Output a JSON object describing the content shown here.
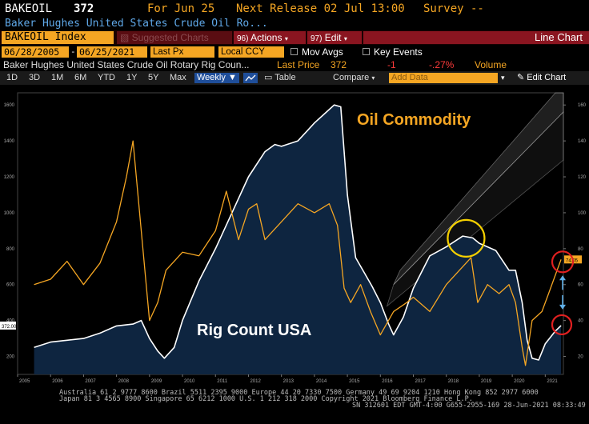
{
  "header": {
    "ticker": "BAKEOIL",
    "value": "372",
    "for_date": "For Jun 25",
    "next_release": "Next Release 02 Jul 13:00",
    "survey": "Survey --",
    "description": "Baker Hughes United States Crude Oil Ro..."
  },
  "toolbar": {
    "security": "BAKEOIL Index",
    "suggested_charts": "Suggested Charts",
    "actions": "Actions",
    "actions_key": "96)",
    "edit": "Edit",
    "edit_key": "97)",
    "chart_type": "Line Chart"
  },
  "settings": {
    "start_date": "06/28/2005",
    "end_date": "06/25/2021",
    "field": "Last Px",
    "currency": "Local CCY",
    "mov_avgs": "Mov Avgs",
    "key_events": "Key Events"
  },
  "legend": {
    "series_name": "Baker Hughes United States Crude Oil Rotary Rig Coun...",
    "last_price_label": "Last Price",
    "last_price": "372",
    "change": "-1",
    "change_pct": "-.27%",
    "volume_label": "Volume"
  },
  "period_bar": {
    "periods": [
      "1D",
      "3D",
      "1M",
      "6M",
      "YTD",
      "1Y",
      "5Y",
      "Max"
    ],
    "frequency": "Weekly",
    "table": "Table",
    "compare": "Compare",
    "add_data": "Add Data",
    "edit_chart": "Edit Chart"
  },
  "chart_data": {
    "type": "line",
    "annotations": [
      "Oil Commodity",
      "Rig Count USA"
    ],
    "x_ticks": [
      "2005",
      "2006",
      "2007",
      "2008",
      "2009",
      "2010",
      "2011",
      "2012",
      "2013",
      "2014",
      "2015",
      "2016",
      "2017",
      "2018",
      "2019",
      "2020",
      "2021"
    ],
    "left_axis": {
      "ticks": [
        200,
        400,
        600,
        800,
        1000,
        1200,
        1400,
        1600
      ],
      "range": [
        100,
        1650
      ]
    },
    "right_axis": {
      "ticks": [
        20,
        40,
        60,
        80,
        100,
        120,
        140,
        160
      ],
      "range": [
        10,
        165
      ]
    },
    "last_labels": {
      "left": "372.00",
      "right": "74.05"
    },
    "series": [
      {
        "name": "Rig Count USA",
        "color": "#ffffff",
        "fill": "#0e2540",
        "x": [
          2005.5,
          2006.0,
          2006.5,
          2007.0,
          2007.5,
          2008.0,
          2008.5,
          2008.75,
          2009.0,
          2009.25,
          2009.45,
          2009.75,
          2010.0,
          2010.5,
          2011.0,
          2011.5,
          2012.0,
          2012.5,
          2012.8,
          2013.0,
          2013.5,
          2014.0,
          2014.3,
          2014.6,
          2014.8,
          2015.0,
          2015.25,
          2015.5,
          2015.75,
          2016.0,
          2016.25,
          2016.4,
          2016.7,
          2017.0,
          2017.5,
          2018.0,
          2018.5,
          2018.8,
          2019.0,
          2019.5,
          2019.9,
          2020.1,
          2020.3,
          2020.45,
          2020.6,
          2020.8,
          2021.0,
          2021.3,
          2021.48
        ],
        "values": [
          250,
          280,
          290,
          300,
          330,
          370,
          380,
          400,
          300,
          230,
          190,
          250,
          400,
          620,
          800,
          1000,
          1200,
          1340,
          1380,
          1370,
          1400,
          1500,
          1550,
          1600,
          1590,
          1100,
          750,
          670,
          590,
          500,
          380,
          320,
          420,
          580,
          760,
          810,
          870,
          860,
          830,
          790,
          680,
          680,
          500,
          290,
          190,
          180,
          270,
          340,
          372
        ]
      },
      {
        "name": "Oil Commodity",
        "color": "#f5a623",
        "x": [
          2005.5,
          2006.0,
          2006.5,
          2007.0,
          2007.5,
          2008.0,
          2008.3,
          2008.5,
          2008.75,
          2009.0,
          2009.25,
          2009.5,
          2010.0,
          2010.5,
          2011.0,
          2011.33,
          2011.7,
          2012.0,
          2012.25,
          2012.5,
          2013.0,
          2013.5,
          2014.0,
          2014.45,
          2014.7,
          2014.9,
          2015.1,
          2015.4,
          2015.7,
          2016.0,
          2016.4,
          2016.8,
          2017.0,
          2017.5,
          2018.0,
          2018.75,
          2018.95,
          2019.25,
          2019.6,
          2019.9,
          2020.1,
          2020.3,
          2020.4,
          2020.6,
          2020.9,
          2021.1,
          2021.3,
          2021.48
        ],
        "values": [
          60,
          63,
          73,
          60,
          72,
          95,
          120,
          140,
          90,
          40,
          50,
          68,
          78,
          76,
          90,
          112,
          85,
          102,
          105,
          85,
          95,
          105,
          100,
          105,
          93,
          58,
          50,
          60,
          45,
          32,
          45,
          50,
          53,
          45,
          60,
          75,
          50,
          60,
          55,
          60,
          50,
          25,
          15,
          40,
          45,
          55,
          65,
          74
        ]
      }
    ]
  },
  "footer": {
    "line1": "Australia 61 2 9777 8600 Brazil 5511 2395 9000 Europe 44 20 7330 7500 Germany 49 69 9204 1210 Hong Kong 852 2977 6000",
    "line2": "Japan 81 3 4565 8900       Singapore 65 6212 1000    U.S. 1 212 318 2000          Copyright 2021 Bloomberg Finance L.P.",
    "line3": "SN 312601 EDT  GMT-4:00 G655-2955-169 28-Jun-2021 08:33:49"
  }
}
